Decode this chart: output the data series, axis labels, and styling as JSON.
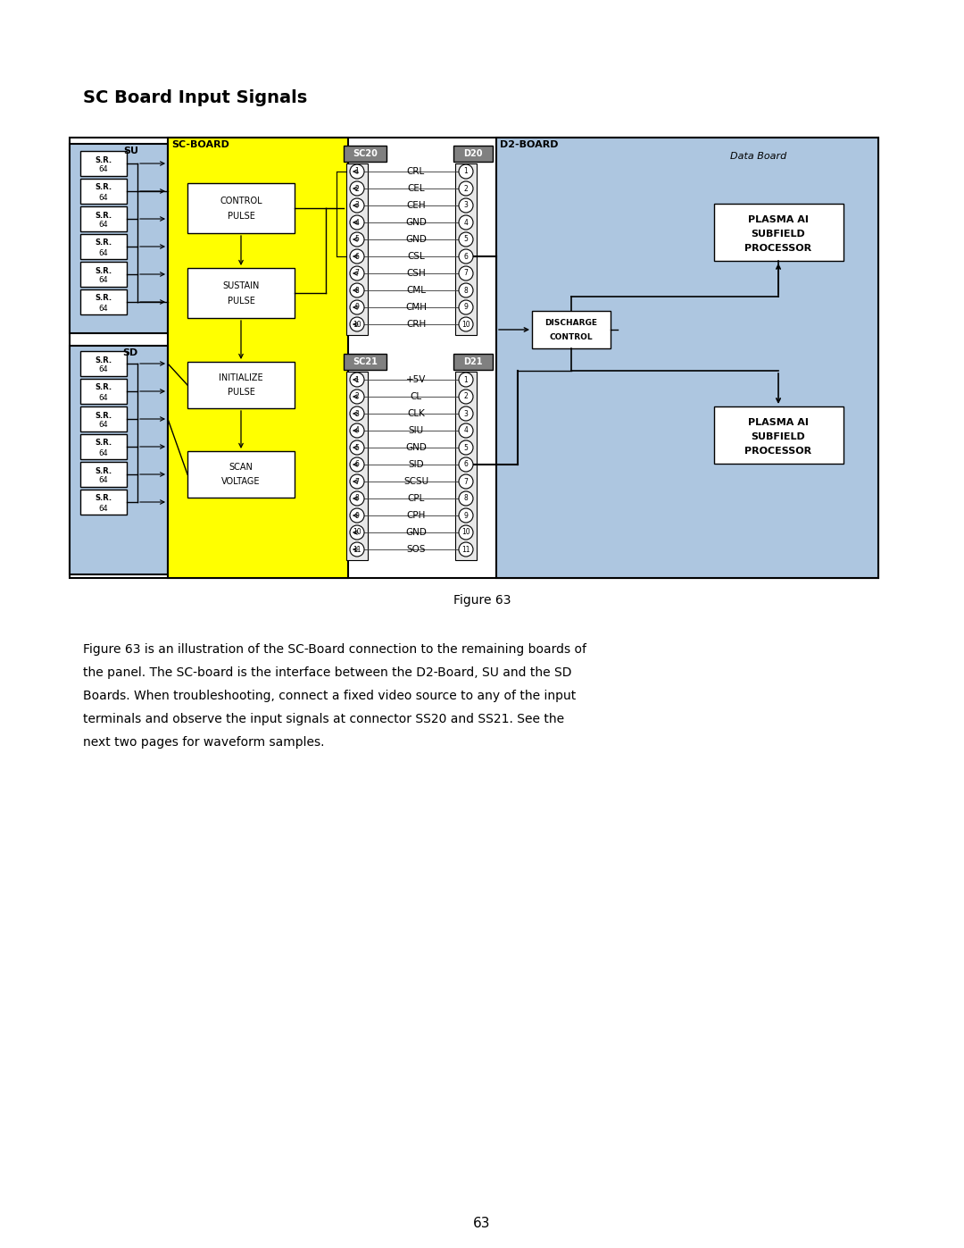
{
  "title": "SC Board Input Signals",
  "figure_caption": "Figure 63",
  "body_text": "Figure 63 is an illustration of the SC-Board connection to the remaining boards of\nthe panel. The SC-board is the interface between the D2-Board, SU and the SD\nBoards. When troubleshooting, connect a fixed video source to any of the input\nterminals and observe the input signals at connector SS20 and SS21. See the\nnext two pages for waveform samples.",
  "page_number": "63",
  "bg_color": "#ffffff",
  "su_sd_color": "#adc6e0",
  "scboard_color": "#ffff00",
  "d2board_color": "#adc6e0",
  "gray_label_color": "#808080",
  "sc20_signals": [
    "CRL",
    "CEL",
    "CEH",
    "GND",
    "GND",
    "CSL",
    "CSH",
    "CML",
    "CMH",
    "CRH"
  ],
  "sc21_signals": [
    "+5V",
    "CL",
    "CLK",
    "SIU",
    "GND",
    "SID",
    "SCSU",
    "CPL",
    "CPH",
    "GND",
    "SOS"
  ]
}
